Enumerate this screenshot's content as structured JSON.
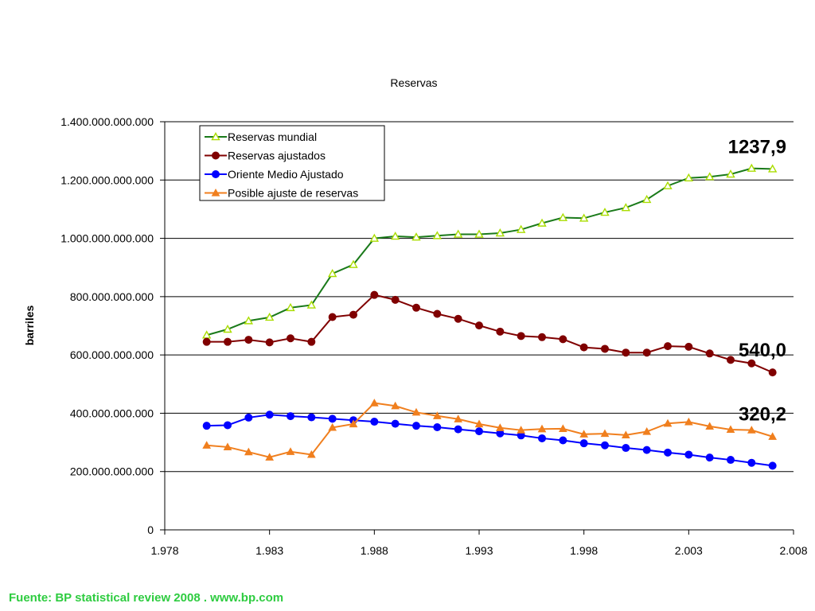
{
  "source_note": "Fuente: BP statistical review 2008 . www.bp.com",
  "chart_data": {
    "type": "line",
    "title": "Reservas",
    "xlabel": "",
    "ylabel": "barriles",
    "xlim": [
      1978,
      2008
    ],
    "ylim": [
      0,
      1400000000000
    ],
    "x_ticks": [
      1978,
      1983,
      1988,
      1993,
      1998,
      2003,
      2008
    ],
    "x_tick_labels": [
      "1.978",
      "1.983",
      "1.988",
      "1.993",
      "1.998",
      "2.003",
      "2.008"
    ],
    "y_ticks": [
      0,
      200000000000,
      400000000000,
      600000000000,
      800000000000,
      1000000000000,
      1200000000000,
      1400000000000
    ],
    "y_tick_labels": [
      "0",
      "200.000.000.000",
      "400.000.000.000",
      "600.000.000.000",
      "800.000.000.000",
      "1.000.000.000.000",
      "1.200.000.000.000",
      "1.400.000.000.000"
    ],
    "grid": "horizontal",
    "legend_position": "top-left",
    "x": [
      1980,
      1981,
      1982,
      1983,
      1984,
      1985,
      1986,
      1987,
      1988,
      1989,
      1990,
      1991,
      1992,
      1993,
      1994,
      1995,
      1996,
      1997,
      1998,
      1999,
      2000,
      2001,
      2002,
      2003,
      2004,
      2005,
      2006,
      2007
    ],
    "series": [
      {
        "name": "Reservas mundial",
        "color": "#1a7a1a",
        "marker": "triangle-open",
        "marker_color": "#aadd00",
        "values": [
          668000000000,
          688000000000,
          717000000000,
          729000000000,
          762000000000,
          771000000000,
          879000000000,
          910000000000,
          1000000000000,
          1007000000000,
          1004000000000,
          1009000000000,
          1014000000000,
          1014000000000,
          1018000000000,
          1030000000000,
          1052000000000,
          1071000000000,
          1069000000000,
          1089000000000,
          1105000000000,
          1133000000000,
          1180000000000,
          1207000000000,
          1211000000000,
          1220000000000,
          1240000000000,
          1238000000000
        ]
      },
      {
        "name": "Reservas ajustados",
        "color": "#800000",
        "marker": "circle",
        "marker_color": "#800000",
        "values": [
          645000000000,
          645000000000,
          652000000000,
          643000000000,
          657000000000,
          645000000000,
          730000000000,
          738000000000,
          806000000000,
          789000000000,
          762000000000,
          741000000000,
          724000000000,
          701000000000,
          680000000000,
          665000000000,
          661000000000,
          654000000000,
          626000000000,
          621000000000,
          608000000000,
          608000000000,
          630000000000,
          628000000000,
          605000000000,
          583000000000,
          571000000000,
          540000000000
        ]
      },
      {
        "name": "Oriente Medio Ajustado",
        "color": "#0000ff",
        "marker": "circle",
        "marker_color": "#0000ff",
        "values": [
          357000000000,
          359000000000,
          385000000000,
          395000000000,
          390000000000,
          386000000000,
          381000000000,
          376000000000,
          371000000000,
          364000000000,
          357000000000,
          352000000000,
          345000000000,
          338000000000,
          331000000000,
          324000000000,
          314000000000,
          307000000000,
          297000000000,
          290000000000,
          281000000000,
          274000000000,
          265000000000,
          258000000000,
          248000000000,
          240000000000,
          230000000000,
          220000000000
        ]
      },
      {
        "name": "Posible ajuste de reservas",
        "color": "#f07f1e",
        "marker": "triangle",
        "marker_color": "#f07f1e",
        "values": [
          290000000000,
          284000000000,
          267000000000,
          249000000000,
          268000000000,
          258000000000,
          351000000000,
          363000000000,
          435000000000,
          425000000000,
          403000000000,
          391000000000,
          380000000000,
          363000000000,
          350000000000,
          342000000000,
          346000000000,
          347000000000,
          328000000000,
          330000000000,
          325000000000,
          337000000000,
          365000000000,
          370000000000,
          355000000000,
          344000000000,
          342000000000,
          320000000000
        ]
      }
    ],
    "annotations": [
      {
        "text": "1237,9",
        "series": 0
      },
      {
        "text": "540,0",
        "series": 1
      },
      {
        "text": "320,2",
        "series": 3
      }
    ]
  }
}
